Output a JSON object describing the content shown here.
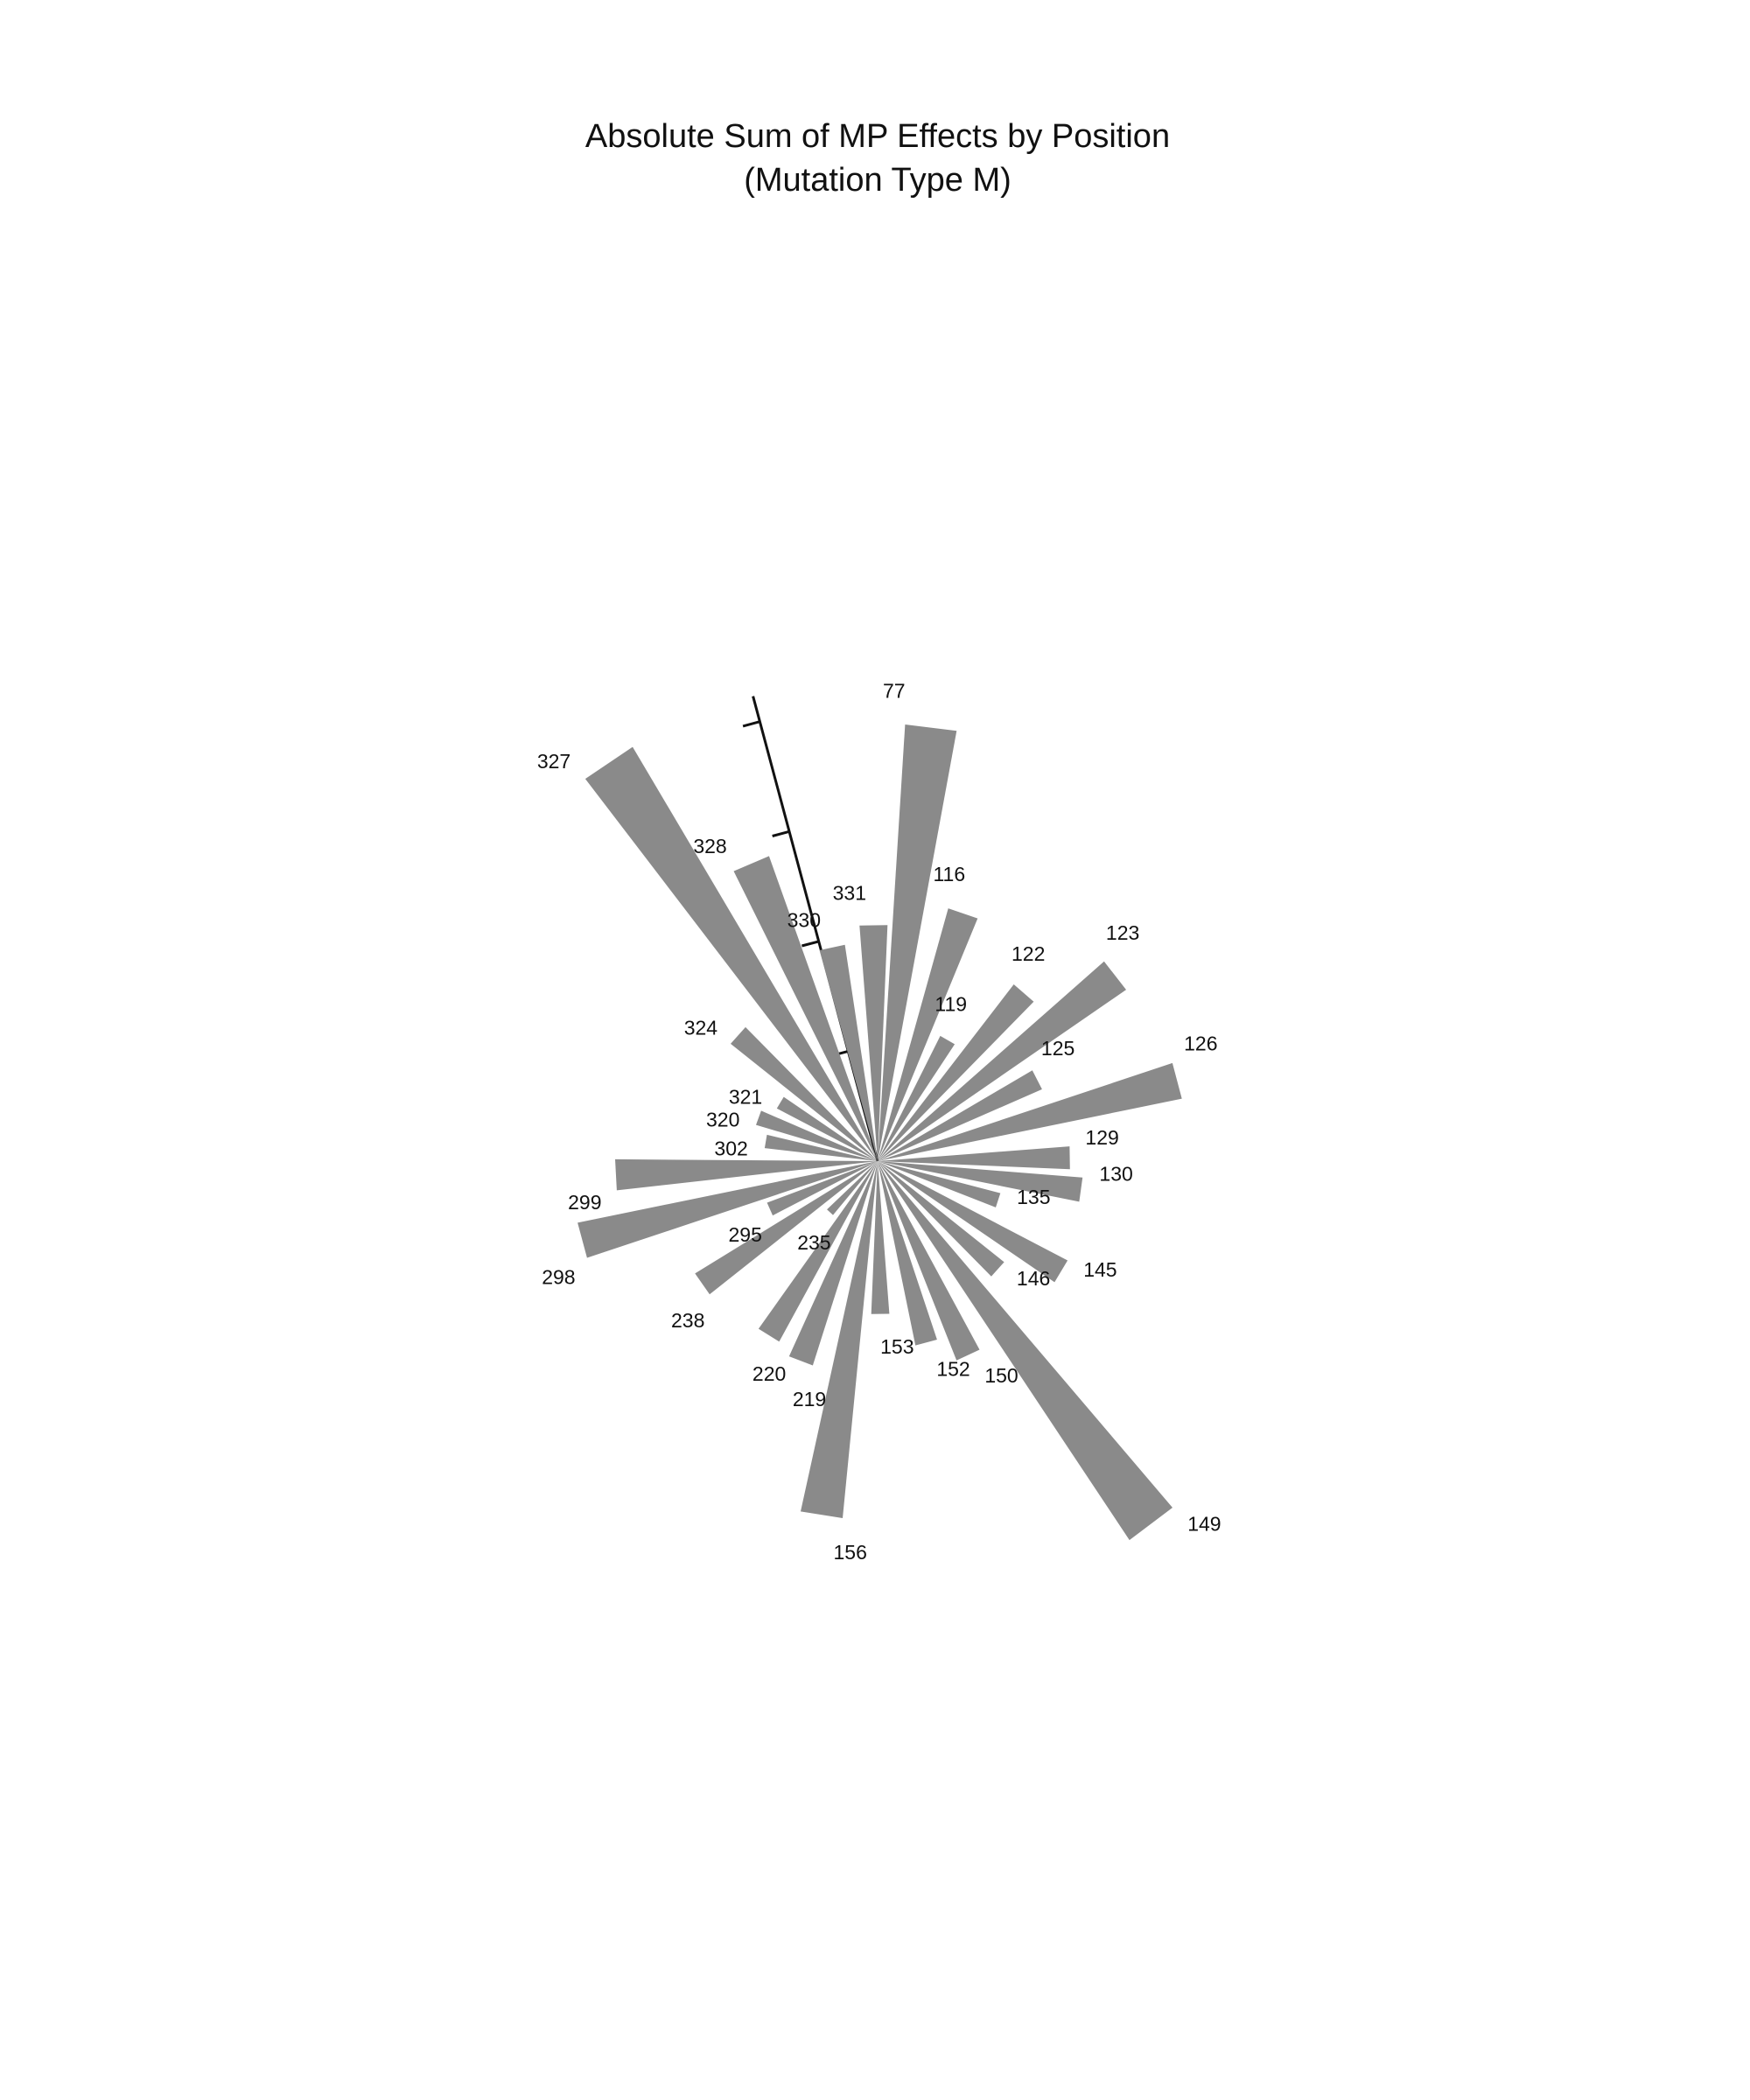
{
  "chart_data": {
    "type": "radial-bar",
    "title_lines": [
      "Absolute Sum of MP Effects by Position",
      "(Mutation Type M)"
    ],
    "angle_unit": "degrees clockwise from top",
    "bars": [
      {
        "label": "77",
        "angle": 7,
        "value": 0.5
      },
      {
        "label": "116",
        "angle": 19,
        "value": 0.3
      },
      {
        "label": "119",
        "angle": 30,
        "value": 0.16
      },
      {
        "label": "122",
        "angle": 41,
        "value": 0.255
      },
      {
        "label": "123",
        "angle": 52,
        "value": 0.345
      },
      {
        "label": "125",
        "angle": 63,
        "value": 0.205
      },
      {
        "label": "126",
        "angle": 75,
        "value": 0.355
      },
      {
        "label": "129",
        "angle": 89,
        "value": 0.22
      },
      {
        "label": "130",
        "angle": 98,
        "value": 0.235
      },
      {
        "label": "135",
        "angle": 108,
        "value": 0.145
      },
      {
        "label": "145",
        "angle": 121,
        "value": 0.245
      },
      {
        "label": "146",
        "angle": 132,
        "value": 0.185
      },
      {
        "label": "149",
        "angle": 143,
        "value": 0.52
      },
      {
        "label": "150",
        "angle": 155,
        "value": 0.245
      },
      {
        "label": "152",
        "angle": 165,
        "value": 0.215
      },
      {
        "label": "153",
        "angle": 179,
        "value": 0.175
      },
      {
        "label": "156",
        "angle": 189,
        "value": 0.41
      },
      {
        "label": "219",
        "angle": 201,
        "value": 0.245
      },
      {
        "label": "220",
        "angle": 212,
        "value": 0.235
      },
      {
        "label": "235",
        "angle": 223,
        "value": 0.08
      },
      {
        "label": "238",
        "angle": 235,
        "value": 0.245
      },
      {
        "label": "295",
        "angle": 246,
        "value": 0.135
      },
      {
        "label": "298",
        "angle": 255,
        "value": 0.35
      },
      {
        "label": "299",
        "angle": 267,
        "value": 0.3
      },
      {
        "label": "302",
        "angle": 280,
        "value": 0.13
      },
      {
        "label": "320",
        "angle": 290,
        "value": 0.145
      },
      {
        "label": "321",
        "angle": 301,
        "value": 0.13
      },
      {
        "label": "324",
        "angle": 312,
        "value": 0.215
      },
      {
        "label": "327",
        "angle": 326,
        "value": 0.55
      },
      {
        "label": "328",
        "angle": 337,
        "value": 0.37
      },
      {
        "label": "330",
        "angle": 348,
        "value": 0.25
      },
      {
        "label": "331",
        "angle": 359,
        "value": 0.27
      }
    ],
    "radial_axis": {
      "angle": 345,
      "max": 0.55,
      "ticks": [
        0.13,
        0.26,
        0.39,
        0.52
      ]
    },
    "grid": false,
    "legend": "none"
  }
}
